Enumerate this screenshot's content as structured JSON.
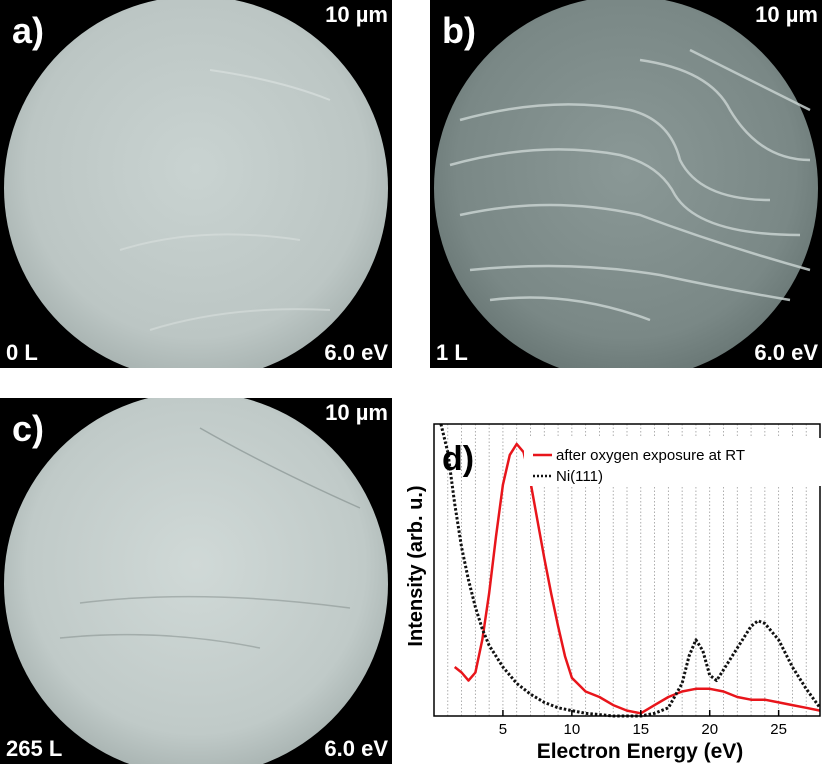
{
  "panels": [
    {
      "id": "a",
      "letter": "a)",
      "scale": "10 µm",
      "dose": "0 L",
      "energy": "6.0 eV"
    },
    {
      "id": "b",
      "letter": "b)",
      "scale": "10 µm",
      "dose": "1 L",
      "energy": "6.0 eV"
    },
    {
      "id": "c",
      "letter": "c)",
      "scale": "10 µm",
      "dose": "265 L",
      "energy": "6.0 eV"
    }
  ],
  "chart_data": {
    "type": "line",
    "panel_label": "d)",
    "xlabel": "Electron Energy (eV)",
    "ylabel": "Intensity (arb. u.)",
    "xlim": [
      0,
      28
    ],
    "ylim": [
      0,
      1
    ],
    "x_ticks": [
      5,
      10,
      15,
      20,
      25
    ],
    "y_ticks_labeled": false,
    "grid": "vertical dotted lines every 1 eV",
    "legend_position": "top-right",
    "series": [
      {
        "name": "after oxygen exposure at RT",
        "color": "#e8151b",
        "dash": "solid",
        "x": [
          1.5,
          2.0,
          2.5,
          3.0,
          3.5,
          4.0,
          4.5,
          5.0,
          5.5,
          6.0,
          6.5,
          7.0,
          7.5,
          8.0,
          8.5,
          9.0,
          9.5,
          10.0,
          11.0,
          12.0,
          13.0,
          14.0,
          15.0,
          16.0,
          17.0,
          18.0,
          19.0,
          20.0,
          21.0,
          22.0,
          23.0,
          24.0,
          25.0,
          26.0,
          27.0,
          28.0
        ],
        "y": [
          0.18,
          0.16,
          0.13,
          0.16,
          0.28,
          0.45,
          0.66,
          0.85,
          0.96,
          1.0,
          0.97,
          0.86,
          0.72,
          0.58,
          0.45,
          0.33,
          0.22,
          0.14,
          0.09,
          0.07,
          0.04,
          0.02,
          0.01,
          0.04,
          0.07,
          0.09,
          0.1,
          0.1,
          0.09,
          0.07,
          0.06,
          0.06,
          0.05,
          0.04,
          0.03,
          0.02
        ]
      },
      {
        "name": "Ni(111)",
        "color": "#111111",
        "dash": "dotted",
        "x": [
          0.5,
          1.0,
          1.5,
          2.0,
          2.5,
          3.0,
          3.5,
          4.0,
          5.0,
          6.0,
          7.0,
          8.0,
          9.0,
          10.0,
          11.0,
          12.0,
          13.0,
          14.0,
          15.0,
          16.0,
          17.0,
          18.0,
          18.5,
          19.0,
          19.5,
          20.0,
          20.5,
          21.0,
          22.0,
          23.0,
          23.5,
          24.0,
          25.0,
          26.0,
          27.0,
          28.0
        ],
        "y": [
          1.2,
          0.97,
          0.78,
          0.62,
          0.5,
          0.4,
          0.32,
          0.26,
          0.18,
          0.12,
          0.08,
          0.05,
          0.03,
          0.02,
          0.01,
          0.005,
          0.0,
          0.0,
          0.0,
          0.01,
          0.03,
          0.12,
          0.22,
          0.28,
          0.24,
          0.15,
          0.13,
          0.17,
          0.25,
          0.33,
          0.35,
          0.34,
          0.28,
          0.18,
          0.1,
          0.03
        ]
      }
    ]
  }
}
